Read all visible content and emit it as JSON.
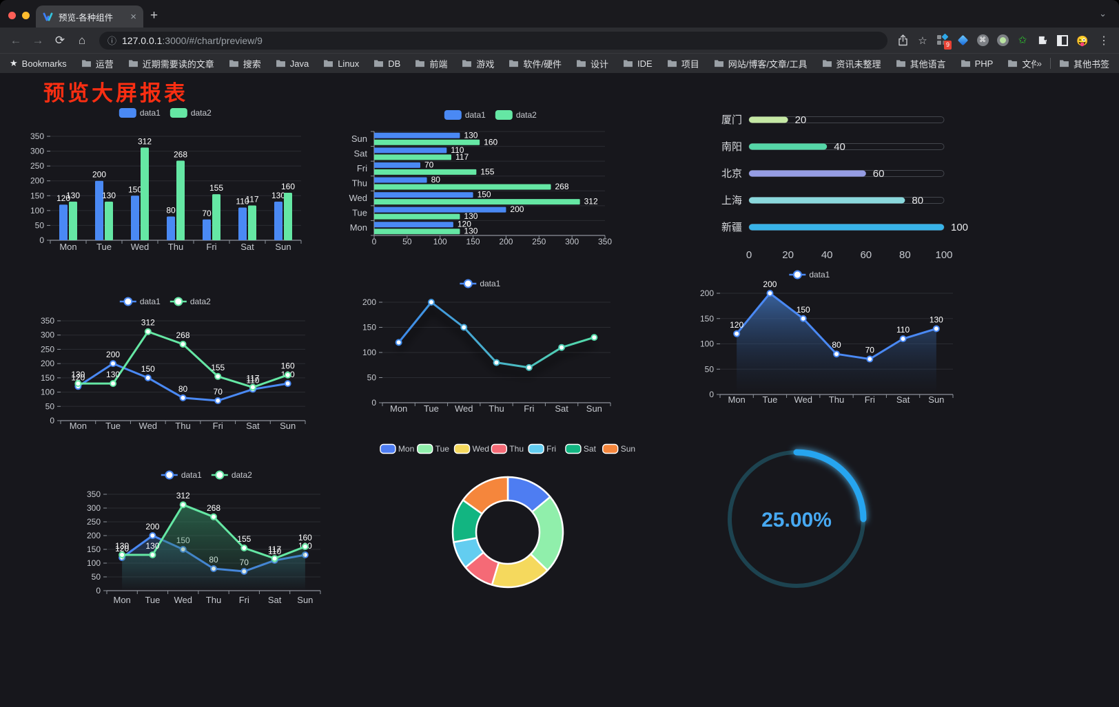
{
  "browser": {
    "tab_title": "预览-各种组件",
    "url_host": "127.0.0.1",
    "url_rest": ":3000/#/chart/preview/9",
    "extension_badge": "9",
    "glyphs": {
      "close": "×",
      "new_tab": "+",
      "tab_chevron": "⌄",
      "back": "←",
      "forward": "→",
      "reload": "⟳",
      "home": "⌂",
      "info": "ⓘ",
      "star": "☆",
      "bookmarks_star": "★",
      "cmd": "⌘",
      "green_star": "✩",
      "emoji": "😜",
      "menu": "⋮"
    },
    "bookmarks_bar": {
      "first": "Bookmarks",
      "folders": [
        "运营",
        "近期需要读的文章",
        "搜索",
        "Java",
        "Linux",
        "DB",
        "前端",
        "游戏",
        "软件/硬件",
        "设计",
        "IDE",
        "项目",
        "网站/博客/文章/工具",
        "资讯未整理",
        "其他语言",
        "PHP",
        "文件服务器"
      ],
      "overflow": "»",
      "other": "其他书签"
    }
  },
  "page": {
    "title": "预览大屏报表",
    "title_color": "#fb2e12",
    "background": "#17171c"
  },
  "chart_data": [
    {
      "id": "bar-vertical",
      "type": "bar",
      "legend": [
        "data1",
        "data2"
      ],
      "legend_position": "top",
      "categories": [
        "Mon",
        "Tue",
        "Wed",
        "Thu",
        "Fri",
        "Sat",
        "Sun"
      ],
      "series": [
        {
          "name": "data1",
          "color": "#4a89f4",
          "values": [
            120,
            200,
            150,
            80,
            70,
            110,
            130
          ]
        },
        {
          "name": "data2",
          "color": "#65e7a4",
          "values": [
            130,
            130,
            312,
            268,
            155,
            117,
            160
          ]
        }
      ],
      "ylim": [
        0,
        350
      ],
      "yticks": [
        0,
        50,
        100,
        150,
        200,
        250,
        300,
        350
      ],
      "grid": true,
      "value_labels": true
    },
    {
      "id": "bar-horizontal",
      "type": "hbar",
      "legend": [
        "data1",
        "data2"
      ],
      "legend_position": "top",
      "categories": [
        "Mon",
        "Tue",
        "Wed",
        "Thu",
        "Fri",
        "Sat",
        "Sun"
      ],
      "series": [
        {
          "name": "data1",
          "color": "#4a89f4",
          "values": [
            120,
            200,
            150,
            80,
            70,
            110,
            130
          ]
        },
        {
          "name": "data2",
          "color": "#65e7a4",
          "values": [
            130,
            130,
            312,
            268,
            155,
            117,
            160
          ]
        }
      ],
      "xlim": [
        0,
        350
      ],
      "xticks": [
        0,
        50,
        100,
        150,
        200,
        250,
        300,
        350
      ],
      "grid": true,
      "value_labels": true
    },
    {
      "id": "city-progress",
      "type": "progress",
      "max": 100,
      "xticks": [
        0,
        20,
        40,
        60,
        80,
        100
      ],
      "items": [
        {
          "label": "厦门",
          "value": 20,
          "color": "#c5e8a4"
        },
        {
          "label": "南阳",
          "value": 40,
          "color": "#55d6a7"
        },
        {
          "label": "北京",
          "value": 60,
          "color": "#959ce3"
        },
        {
          "label": "上海",
          "value": 80,
          "color": "#8ad8dc"
        },
        {
          "label": "新疆",
          "value": 100,
          "color": "#38b3e8"
        }
      ]
    },
    {
      "id": "line-two-series",
      "type": "line",
      "legend": [
        "data1",
        "data2"
      ],
      "legend_position": "top",
      "categories": [
        "Mon",
        "Tue",
        "Wed",
        "Thu",
        "Fri",
        "Sat",
        "Sun"
      ],
      "series": [
        {
          "name": "data1",
          "color": "#4a89f4",
          "values": [
            120,
            200,
            150,
            80,
            70,
            110,
            130
          ]
        },
        {
          "name": "data2",
          "color": "#65e7a4",
          "values": [
            130,
            130,
            312,
            268,
            155,
            117,
            160
          ]
        }
      ],
      "ylim": [
        0,
        350
      ],
      "yticks": [
        0,
        50,
        100,
        150,
        200,
        250,
        300,
        350
      ],
      "grid": true,
      "value_labels": true
    },
    {
      "id": "line-gradient",
      "type": "line",
      "legend": [
        "data1"
      ],
      "legend_position": "top",
      "categories": [
        "Mon",
        "Tue",
        "Wed",
        "Thu",
        "Fri",
        "Sat",
        "Sun"
      ],
      "series": [
        {
          "name": "data1",
          "color": "#4a89f4",
          "gradient": [
            "#3c82f0",
            "#55e3a3"
          ],
          "values": [
            120,
            200,
            150,
            80,
            70,
            110,
            130
          ]
        }
      ],
      "ylim": [
        0,
        200
      ],
      "yticks": [
        0,
        50,
        100,
        150,
        200
      ],
      "grid": true,
      "value_labels": false,
      "shadow": true
    },
    {
      "id": "area-single",
      "type": "line",
      "legend": [
        "data1"
      ],
      "legend_position": "top",
      "categories": [
        "Mon",
        "Tue",
        "Wed",
        "Thu",
        "Fri",
        "Sat",
        "Sun"
      ],
      "series": [
        {
          "name": "data1",
          "color": "#4a89f4",
          "values": [
            120,
            200,
            150,
            80,
            70,
            110,
            130
          ],
          "area": [
            "rgba(62,110,178,0.85)",
            "rgba(30,50,80,0)"
          ]
        }
      ],
      "ylim": [
        0,
        200
      ],
      "yticks": [
        0,
        50,
        100,
        150,
        200
      ],
      "grid": true,
      "value_labels": true
    },
    {
      "id": "area-two-series",
      "type": "line",
      "legend": [
        "data1",
        "data2"
      ],
      "legend_position": "top",
      "categories": [
        "Mon",
        "Tue",
        "Wed",
        "Thu",
        "Fri",
        "Sat",
        "Sun"
      ],
      "series": [
        {
          "name": "data1",
          "color": "#4a89f4",
          "values": [
            120,
            200,
            150,
            80,
            70,
            110,
            130
          ],
          "area": [
            "rgba(52,96,156,0.75)",
            "rgba(52,96,156,0)"
          ]
        },
        {
          "name": "data2",
          "color": "#65e7a4",
          "values": [
            130,
            130,
            312,
            268,
            155,
            117,
            160
          ],
          "area": [
            "rgba(47,122,88,0.8)",
            "rgba(47,122,88,0)"
          ]
        }
      ],
      "ylim": [
        0,
        350
      ],
      "yticks": [
        0,
        50,
        100,
        150,
        200,
        250,
        300,
        350
      ],
      "grid": true,
      "value_labels": true
    },
    {
      "id": "weekday-donut",
      "type": "pie",
      "inner_radius_ratio": 0.57,
      "legend_position": "top",
      "border_color": "#ffffff",
      "slices": [
        {
          "label": "Mon",
          "value": 120,
          "color": "#4e7df2"
        },
        {
          "label": "Tue",
          "value": 200,
          "color": "#90efab"
        },
        {
          "label": "Wed",
          "value": 150,
          "color": "#f5d95d"
        },
        {
          "label": "Thu",
          "value": 80,
          "color": "#f56a76"
        },
        {
          "label": "Fri",
          "value": 70,
          "color": "#63cdf0"
        },
        {
          "label": "Sat",
          "value": 110,
          "color": "#12b581"
        },
        {
          "label": "Sun",
          "value": 130,
          "color": "#f5863c"
        }
      ]
    },
    {
      "id": "percent-gauge",
      "type": "gauge",
      "value": 25,
      "label": "25.00%",
      "progress_color": "#28a5f0",
      "track_color": "#1d4350",
      "text_color": "#47a9f2"
    }
  ]
}
